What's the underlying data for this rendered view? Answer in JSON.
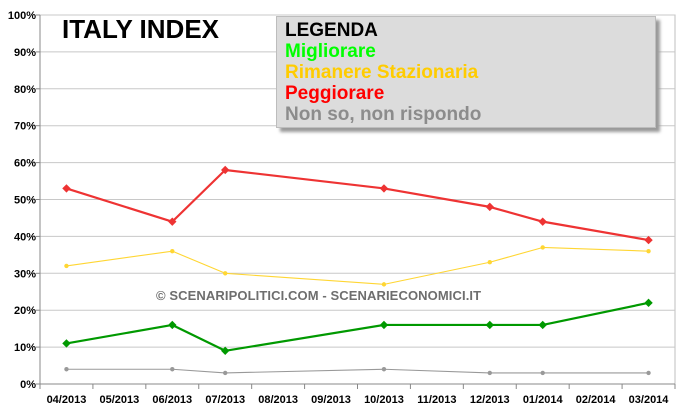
{
  "chart_data": {
    "type": "line",
    "title": "ITALY INDEX",
    "xlabel": "",
    "ylabel": "",
    "ylim": [
      0,
      100
    ],
    "yticks": [
      "0%",
      "10%",
      "20%",
      "30%",
      "40%",
      "50%",
      "60%",
      "70%",
      "80%",
      "90%",
      "100%"
    ],
    "categories": [
      "04/2013",
      "05/2013",
      "06/2013",
      "07/2013",
      "08/2013",
      "09/2013",
      "10/2013",
      "11/2013",
      "12/2013",
      "01/2014",
      "02/2014",
      "03/2014"
    ],
    "grid": true,
    "legend": {
      "title": "LEGENDA",
      "placement": "top-right",
      "entries": [
        "Migliorare",
        "Rimanere Stazionaria",
        "Peggiorare",
        "Non so, non rispondo"
      ]
    },
    "series": [
      {
        "name": "Migliorare",
        "color": "#009900",
        "legend_color": "#00ff00",
        "marker": "diamond",
        "values": [
          11,
          null,
          16,
          9,
          null,
          null,
          16,
          null,
          16,
          16,
          null,
          22
        ]
      },
      {
        "name": "Rimanere Stazionaria",
        "color": "#ffd633",
        "legend_color": "#ffcc00",
        "marker": "circle",
        "values": [
          32,
          null,
          36,
          30,
          null,
          null,
          27,
          null,
          33,
          37,
          null,
          36
        ]
      },
      {
        "name": "Peggiorare",
        "color": "#ee3333",
        "legend_color": "#ff0000",
        "marker": "diamond",
        "values": [
          53,
          null,
          44,
          58,
          null,
          null,
          53,
          null,
          48,
          44,
          null,
          39
        ]
      },
      {
        "name": "Non so, non rispondo",
        "color": "#999999",
        "legend_color": "#8c8c8c",
        "marker": "circle",
        "values": [
          4,
          null,
          4,
          3,
          null,
          null,
          4,
          null,
          3,
          3,
          null,
          3
        ]
      }
    ],
    "watermark": "© SCENARIPOLITICI.COM - SCENARIECONOMICI.IT"
  }
}
